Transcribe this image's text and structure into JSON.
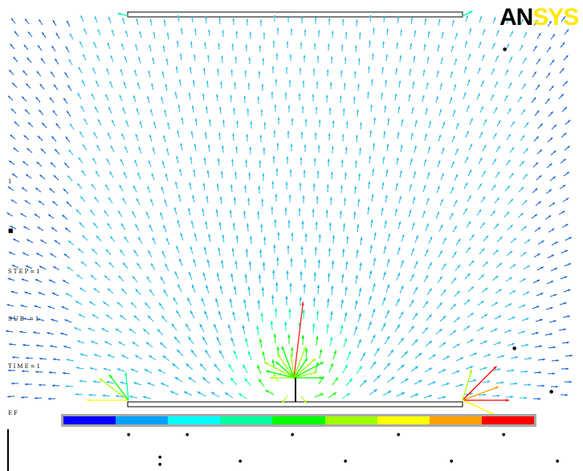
{
  "title_logo": {
    "an": "AN",
    "sys": "SYS"
  },
  "side_labels": {
    "one": "1",
    "marker": "■",
    "step": "STEP=1",
    "sub": "SUB =1",
    "time": "TIME=1",
    "ef": "EF"
  },
  "colorbar": {
    "colors": [
      "#0000ff",
      "#00a0ff",
      "#00ffff",
      "#00ffa0",
      "#00ff00",
      "#a0ff00",
      "#ffff00",
      "#ffa000",
      "#ff0000"
    ],
    "top_ticks": [
      "●",
      "●",
      "●",
      "●",
      "●"
    ],
    "bottom_ticks": [
      "●",
      "●",
      "●",
      "●",
      "●",
      "●"
    ]
  },
  "stray_marks": [
    "●",
    "●",
    "●"
  ],
  "colors": {
    "electrode": "#000000",
    "field_main": "#1fb8e6",
    "field_weak": "#1060d0",
    "field_strong": "#ff2020"
  }
}
